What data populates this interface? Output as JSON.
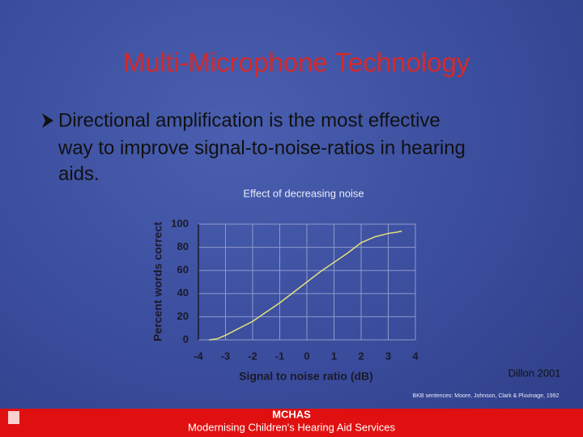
{
  "title": "Multi-Microphone Technology",
  "bullet": [
    "Directional amplification is the most effective",
    "way to improve signal-to-noise-ratios in hearing",
    "aids."
  ],
  "chart_data": {
    "type": "line",
    "title": "Effect of decreasing noise",
    "x_label": "Signal to noise ratio (dB)",
    "y_label": "Percent words correct",
    "x": [
      -3.6,
      -3.3,
      -3,
      -2.5,
      -2,
      -1.5,
      -1,
      -0.5,
      0,
      0.5,
      1,
      1.5,
      2,
      2.5,
      3,
      3.3,
      3.5
    ],
    "series": [
      {
        "name": "Percent words correct",
        "color": "#e6e27a",
        "values": [
          0,
          1,
          4,
          10,
          16,
          24,
          32,
          41,
          50,
          59,
          67,
          75,
          84,
          89,
          92,
          93,
          94
        ]
      }
    ],
    "xlim": [
      -4,
      4
    ],
    "xticks": [
      -4,
      -3,
      -2,
      -1,
      0,
      1,
      2,
      3,
      4
    ],
    "ylim": [
      0,
      100
    ],
    "yticks": [
      0,
      20,
      40,
      60,
      80,
      100
    ],
    "grid": true
  },
  "citation": "Dillon 2001",
  "reference": "BKB sentences: Moore, Johnson, Clark & Pluvinage, 1992",
  "footer": {
    "title": "MCHAS",
    "subtitle": "Modernising Children's Hearing Aid Services"
  }
}
